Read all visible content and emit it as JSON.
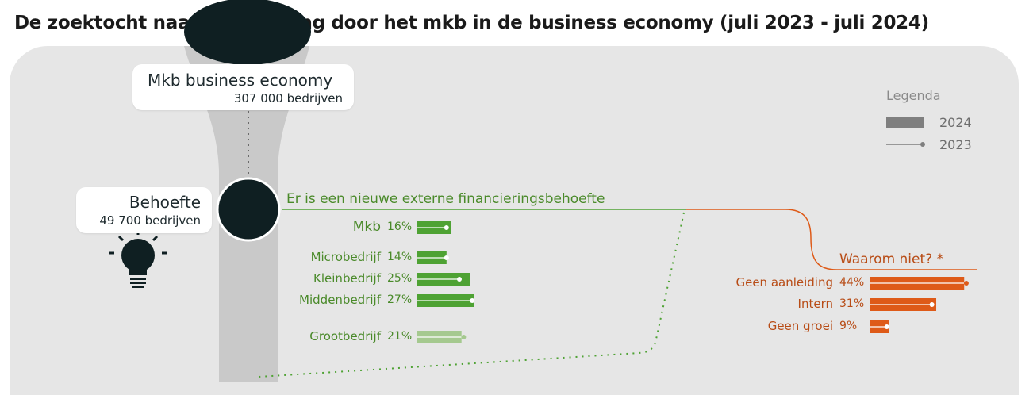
{
  "title": "De zoektocht naar financiering door het mkb in de business economy (juli 2023 - juli 2024)",
  "top_box": {
    "label": "Mkb business economy",
    "count": "307 000  bedrijven"
  },
  "behoefte_box": {
    "label": "Behoefte",
    "count": "49 700  bedrijven"
  },
  "green_heading": "Er is een nieuwe externe financieringsbehoefte",
  "orange_heading": "Waarom niet? *",
  "legend": {
    "title": "Legenda",
    "bar_label": "2024",
    "line_label": "2023"
  },
  "colors": {
    "green": "#4ea233",
    "green_light": "#a5c98f",
    "green_text": "#4a8a2a",
    "orange": "#de5a18",
    "orange_text": "#b84c16",
    "dark": "#0f1f22",
    "funnel": "#c9c9c9",
    "panel": "#e6e6e6"
  },
  "icons": {
    "bulb": "lightbulb-icon"
  },
  "chart_data": [
    {
      "type": "bar",
      "title": "Er is een nieuwe externe financieringsbehoefte",
      "categories": [
        "Mkb",
        "Microbedrijf",
        "Kleinbedrijf",
        "Middenbedrijf",
        "Grootbedrijf"
      ],
      "labels": [
        "16%",
        "14%",
        "25%",
        "27%",
        "21%"
      ],
      "series": [
        {
          "name": "2024",
          "values": [
            16,
            14,
            25,
            27,
            21
          ]
        },
        {
          "name": "2023",
          "values": [
            14,
            14,
            20,
            26,
            22
          ]
        }
      ]
    },
    {
      "type": "bar",
      "title": "Waarom niet? *",
      "categories": [
        "Geen aanleiding",
        "Intern",
        "Geen groei"
      ],
      "labels": [
        "44%",
        "31%",
        "9%"
      ],
      "series": [
        {
          "name": "2024",
          "values": [
            44,
            31,
            9
          ]
        },
        {
          "name": "2023",
          "values": [
            45,
            29,
            8
          ]
        }
      ]
    }
  ]
}
